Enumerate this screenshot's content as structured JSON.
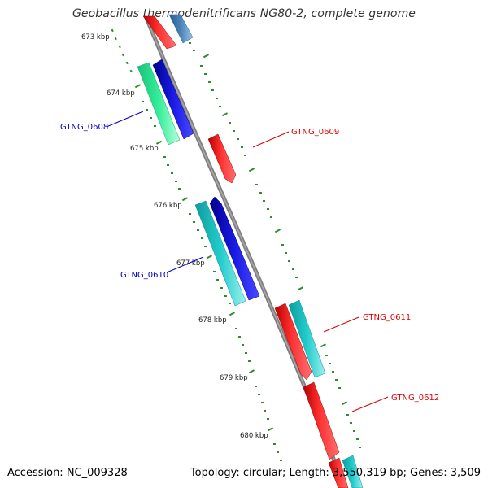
{
  "title": "Geobacillus thermodenitrificans NG80-2, complete genome",
  "accession_text": "Accession: NC_009328",
  "summary_text": "Topology: circular; Length: 3,550,319 bp; Genes: 3,509",
  "ruler_labels": [
    "673 kbp",
    "674 kbp",
    "675 kbp",
    "676 kbp",
    "677 kbp",
    "678 kbp",
    "679 kbp",
    "680 kbp"
  ],
  "gene_labels": {
    "g0608": "GTNG_0608",
    "g0609": "GTNG_0609",
    "g0610": "GTNG_0610",
    "g0611": "GTNG_0611",
    "g0612": "GTNG_0612"
  },
  "colors": {
    "backbone": "#808080",
    "ruler_ticks": "#2e8b2e",
    "feature_red": "#ff2020",
    "feature_blue": "#1a1ae6",
    "feature_cyan": "#22cccc",
    "feature_green": "#33ee99",
    "feature_steel": "#4a84b8",
    "label_blue": "#0000cc",
    "label_red": "#dd0000"
  }
}
